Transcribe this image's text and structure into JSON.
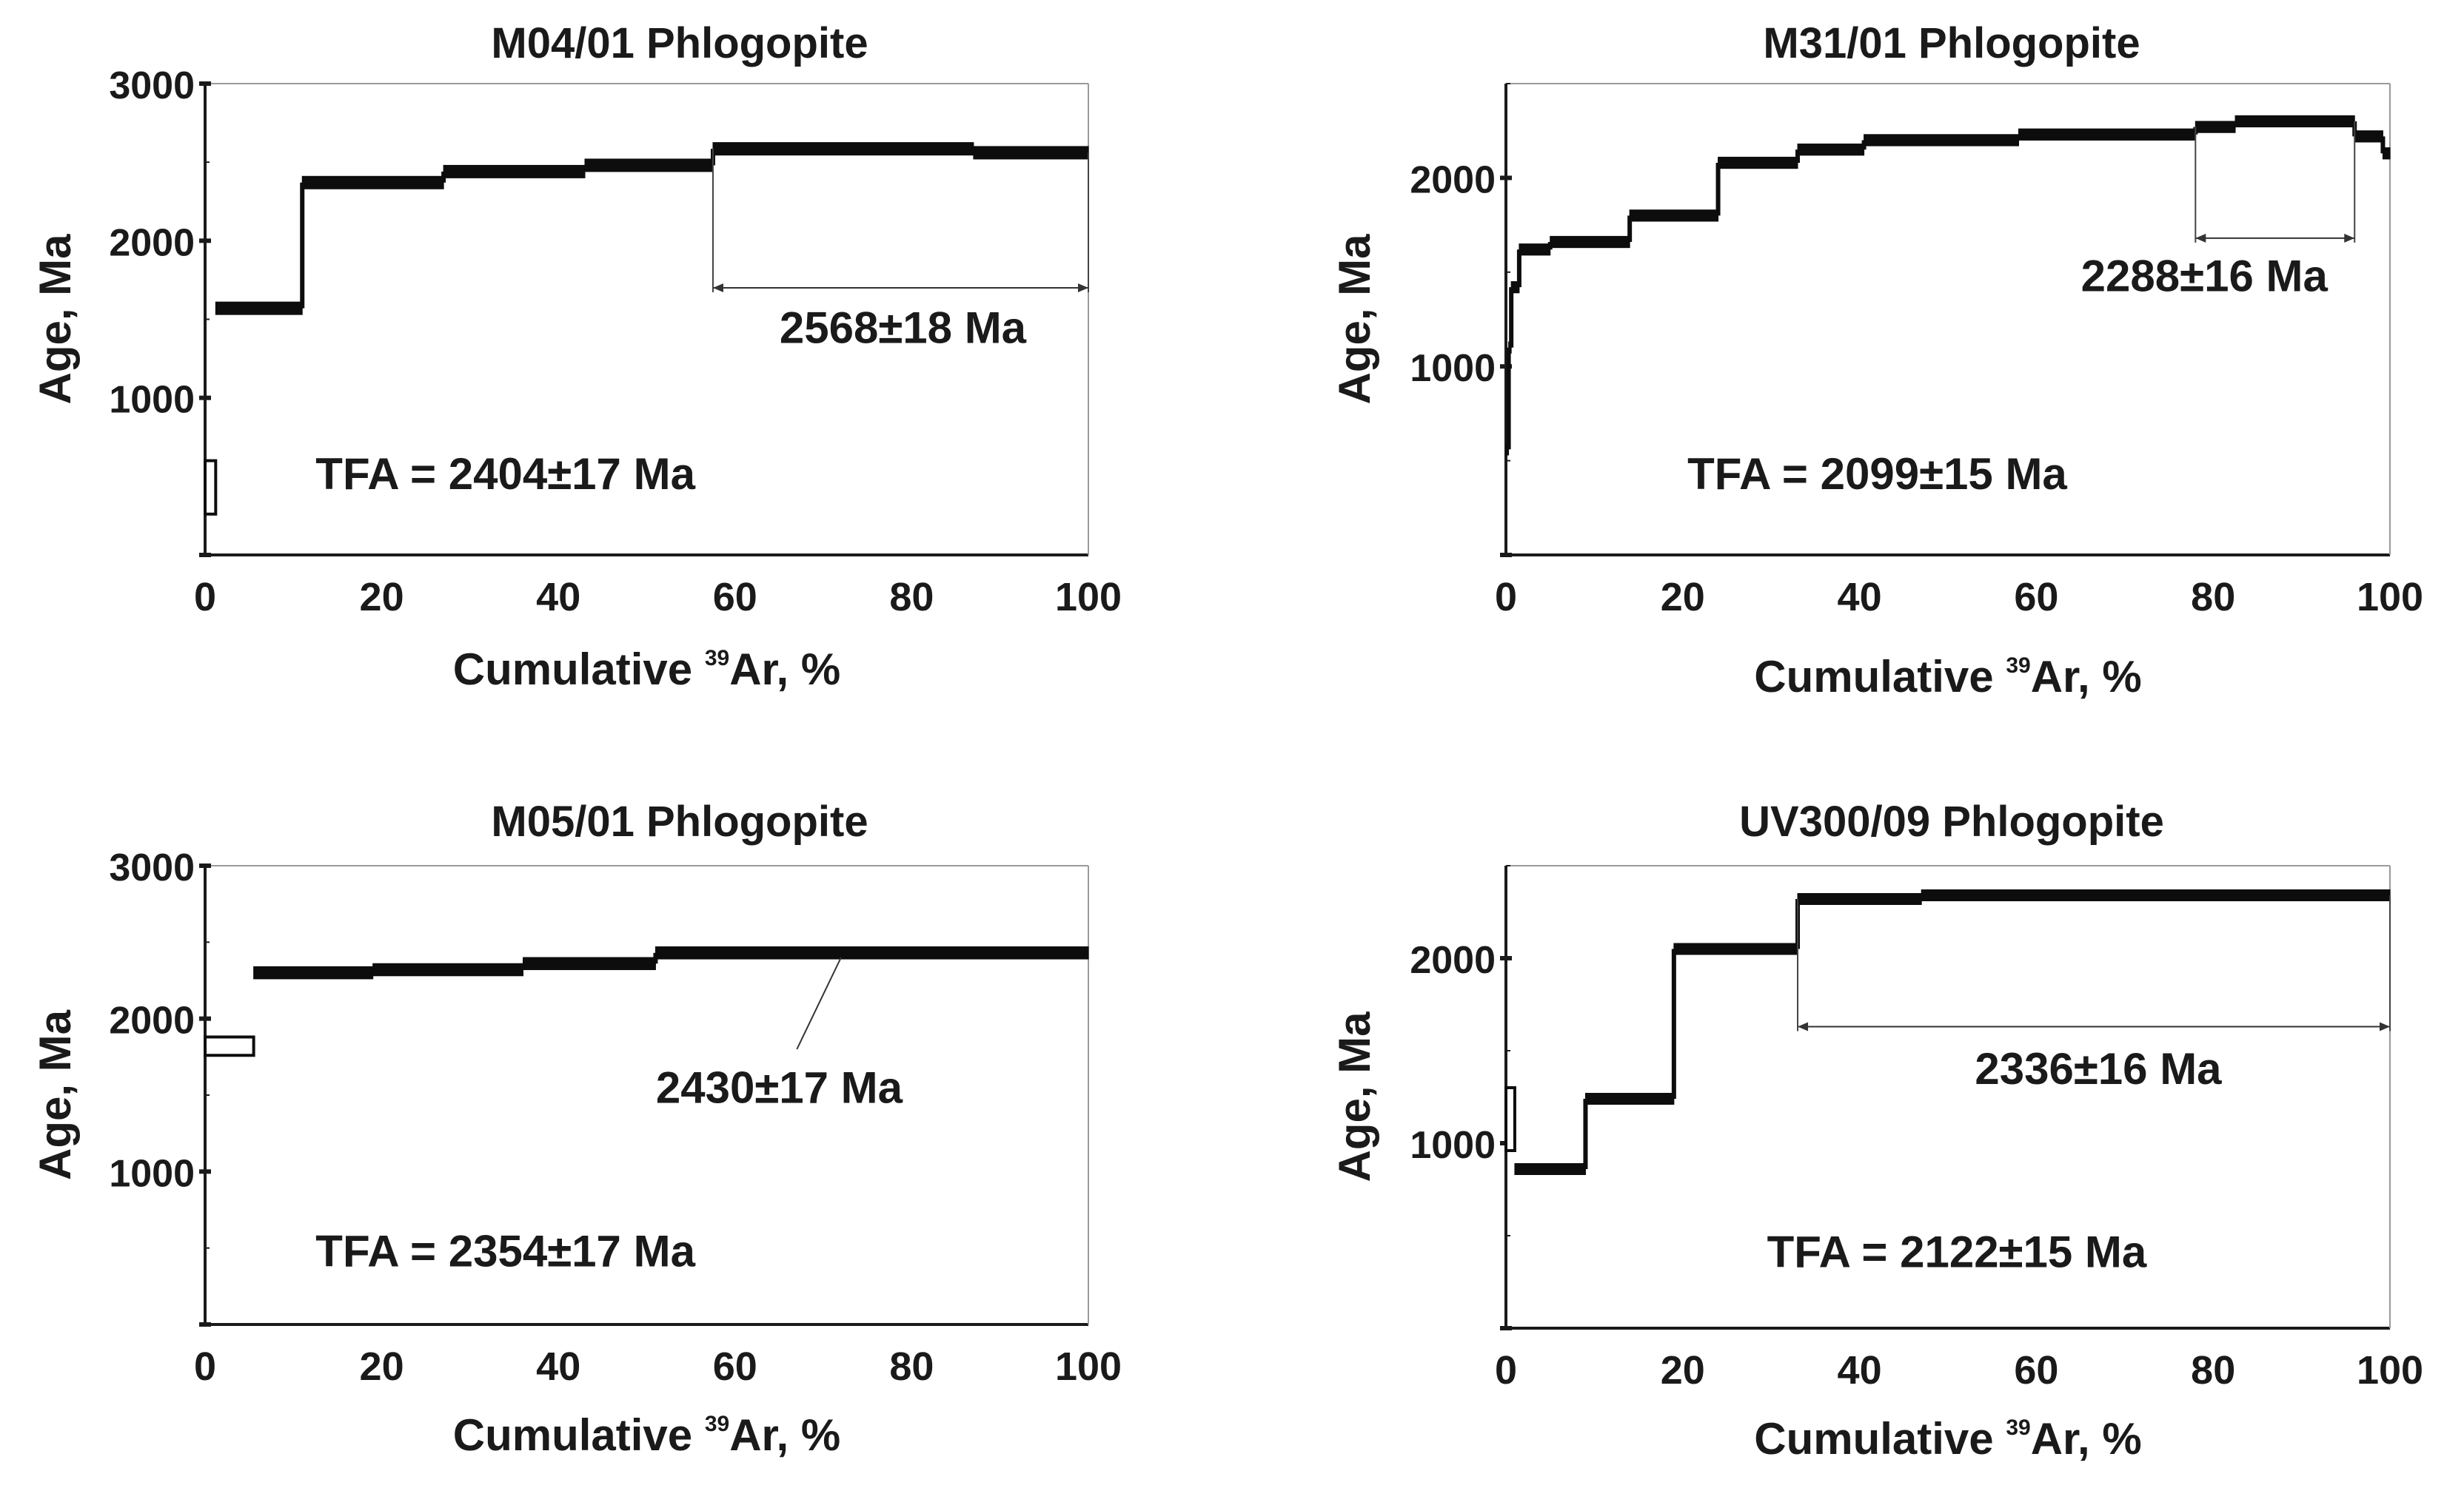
{
  "chart_data": [
    {
      "type": "line",
      "title": "M04/01 Phlogopite",
      "xlabel_prefix": "Cumulative ",
      "xlabel_sup": "39",
      "xlabel_suffix": "Ar, %",
      "ylabel": "Age, Ma",
      "xlim": [
        0,
        100
      ],
      "ylim": [
        0,
        3000
      ],
      "xticks": [
        "0",
        "20",
        "40",
        "60",
        "80",
        "100"
      ],
      "yticks": [
        "1000",
        "2000",
        "3000"
      ],
      "steps": [
        {
          "x0": 0,
          "x1": 1.2,
          "age": 430,
          "err": 170,
          "open": true
        },
        {
          "x0": 1.2,
          "x1": 11,
          "age": 1570,
          "err": 40
        },
        {
          "x0": 11,
          "x1": 27,
          "age": 2370,
          "err": 40
        },
        {
          "x0": 27,
          "x1": 43,
          "age": 2440,
          "err": 40
        },
        {
          "x0": 43,
          "x1": 57.5,
          "age": 2480,
          "err": 40
        },
        {
          "x0": 57.5,
          "x1": 87,
          "age": 2585,
          "err": 40
        },
        {
          "x0": 87,
          "x1": 100,
          "age": 2560,
          "err": 40
        }
      ],
      "plateau": {
        "x0": 57.5,
        "x1": 100,
        "label": "2568±18 Ma",
        "y": 1700,
        "label_x": 79,
        "label_y": 1350
      },
      "tfa": "TFA = 2404±17 Ma",
      "tfa_x": 34,
      "tfa_y": 420
    },
    {
      "type": "line",
      "title": "M31/01 Phlogopite",
      "xlabel_prefix": "Cumulative ",
      "xlabel_sup": "39",
      "xlabel_suffix": "Ar, %",
      "ylabel": "Age, Ma",
      "xlim": [
        0,
        100
      ],
      "ylim": [
        0,
        2500
      ],
      "xticks": [
        "0",
        "20",
        "40",
        "60",
        "80",
        "100"
      ],
      "yticks": [
        "1000",
        "2000"
      ],
      "steps": [
        {
          "x0": 0,
          "x1": 0.3,
          "age": 560,
          "err": 30
        },
        {
          "x0": 0.3,
          "x1": 0.6,
          "age": 1100,
          "err": 30
        },
        {
          "x0": 0.6,
          "x1": 1.5,
          "age": 1420,
          "err": 30
        },
        {
          "x0": 1.5,
          "x1": 5,
          "age": 1620,
          "err": 30
        },
        {
          "x0": 5,
          "x1": 14,
          "age": 1660,
          "err": 30
        },
        {
          "x0": 14,
          "x1": 24,
          "age": 1800,
          "err": 30
        },
        {
          "x0": 24,
          "x1": 33,
          "age": 2080,
          "err": 30
        },
        {
          "x0": 33,
          "x1": 40.5,
          "age": 2150,
          "err": 30
        },
        {
          "x0": 40.5,
          "x1": 58,
          "age": 2200,
          "err": 30
        },
        {
          "x0": 58,
          "x1": 78,
          "age": 2230,
          "err": 30
        },
        {
          "x0": 78,
          "x1": 82.5,
          "age": 2270,
          "err": 30
        },
        {
          "x0": 82.5,
          "x1": 96,
          "age": 2300,
          "err": 30
        },
        {
          "x0": 96,
          "x1": 99.2,
          "age": 2220,
          "err": 30
        },
        {
          "x0": 99.2,
          "x1": 100,
          "age": 2130,
          "err": 30
        }
      ],
      "plateau": {
        "x0": 78,
        "x1": 96,
        "label": "2288±16 Ma",
        "y": 1680,
        "label_x": 79,
        "label_y": 1400
      },
      "tfa": "TFA = 2099±15 Ma",
      "tfa_x": 42,
      "tfa_y": 350
    },
    {
      "type": "line",
      "title": "M05/01 Phlogopite",
      "xlabel_prefix": "Cumulative ",
      "xlabel_sup": "39",
      "xlabel_suffix": "Ar, %",
      "ylabel": "Age, Ma",
      "xlim": [
        0,
        100
      ],
      "ylim": [
        0,
        3000
      ],
      "xticks": [
        "0",
        "20",
        "40",
        "60",
        "80",
        "100"
      ],
      "yticks": [
        "1000",
        "2000",
        "3000"
      ],
      "steps": [
        {
          "x0": 0,
          "x1": 5.5,
          "age": 1820,
          "err": 60,
          "open": true
        },
        {
          "x0": 5.5,
          "x1": 19,
          "age": 2300,
          "err": 40
        },
        {
          "x0": 19,
          "x1": 36,
          "age": 2320,
          "err": 40
        },
        {
          "x0": 36,
          "x1": 51,
          "age": 2360,
          "err": 40
        },
        {
          "x0": 51,
          "x1": 100,
          "age": 2430,
          "err": 40
        }
      ],
      "plateau": {
        "label": "2430±17 Ma",
        "leader_from": [
          72,
          2400
        ],
        "leader_to": [
          67,
          1800
        ],
        "label_x": 65,
        "label_y": 1450
      },
      "tfa": "TFA = 2354±17 Ma",
      "tfa_x": 34,
      "tfa_y": 380
    },
    {
      "type": "line",
      "title": "UV300/09 Phlogopite",
      "xlabel_prefix": "Cumulative ",
      "xlabel_sup": "39",
      "xlabel_suffix": "Ar, %",
      "ylabel": "Age, Ma",
      "xlim": [
        0,
        100
      ],
      "ylim": [
        0,
        2500
      ],
      "xticks": [
        "0",
        "20",
        "40",
        "60",
        "80",
        "100"
      ],
      "yticks": [
        "1000",
        "2000"
      ],
      "steps": [
        {
          "x0": 0,
          "x1": 1,
          "age": 1130,
          "err": 170,
          "open": true
        },
        {
          "x0": 1,
          "x1": 9,
          "age": 860,
          "err": 30
        },
        {
          "x0": 9,
          "x1": 19,
          "age": 1240,
          "err": 30
        },
        {
          "x0": 19,
          "x1": 33,
          "age": 2050,
          "err": 30
        },
        {
          "x0": 33,
          "x1": 47,
          "age": 2320,
          "err": 30
        },
        {
          "x0": 47,
          "x1": 100,
          "age": 2340,
          "err": 30
        }
      ],
      "plateau": {
        "x0": 33,
        "x1": 100,
        "label": "2336±16 Ma",
        "y": 1630,
        "label_x": 67,
        "label_y": 1320
      },
      "tfa": "TFA = 2122±15 Ma",
      "tfa_x": 51,
      "tfa_y": 330
    }
  ]
}
